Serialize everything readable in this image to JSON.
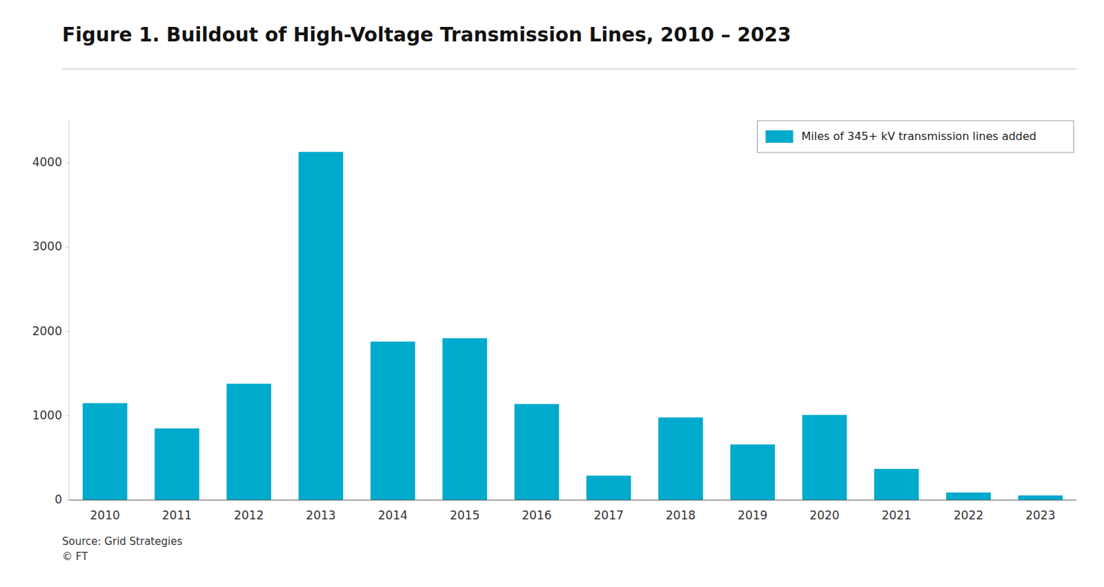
{
  "chart_data": {
    "type": "bar",
    "title": "Figure 1. Buildout of High-Voltage Transmission Lines, 2010 – 2023",
    "categories": [
      "2010",
      "2011",
      "2012",
      "2013",
      "2014",
      "2015",
      "2016",
      "2017",
      "2018",
      "2019",
      "2020",
      "2021",
      "2022",
      "2023"
    ],
    "series": [
      {
        "name": "Miles of 345+ kV transmission lines added",
        "color": "#00AACC",
        "values": [
          1150,
          850,
          1380,
          4130,
          1880,
          1920,
          1140,
          290,
          980,
          660,
          1010,
          370,
          90,
          55
        ]
      }
    ],
    "ylim": [
      0,
      4500
    ],
    "yticks": [
      0,
      1000,
      2000,
      3000,
      4000
    ],
    "grid": false,
    "legend": "upper right",
    "annotations": [
      "Source: Grid Strategies",
      "© FT"
    ]
  }
}
